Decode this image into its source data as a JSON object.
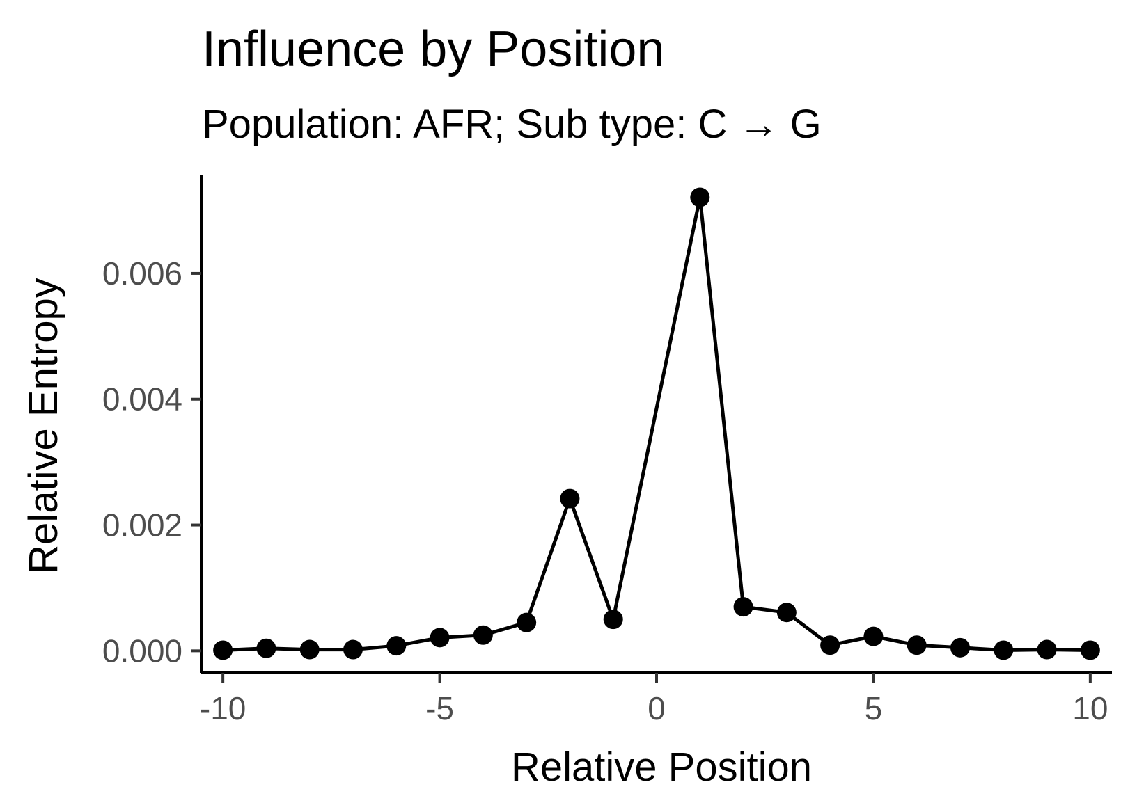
{
  "chart_data": {
    "type": "line",
    "title": "Influence by Position",
    "subtitle": "Population: AFR; Sub type: C → G",
    "xlabel": "Relative Position",
    "ylabel": "Relative Entropy",
    "x": [
      -10,
      -9,
      -8,
      -7,
      -6,
      -5,
      -4,
      -3,
      -2,
      -1,
      1,
      2,
      3,
      4,
      5,
      6,
      7,
      8,
      9,
      10
    ],
    "series": [
      {
        "values": [
          1e-05,
          4e-05,
          2e-05,
          2e-05,
          8e-05,
          0.00021,
          0.00025,
          0.00045,
          0.00242,
          0.0005,
          0.00721,
          0.0007,
          0.00061,
          9e-05,
          0.00023,
          9e-05,
          5e-05,
          1e-05,
          2e-05,
          1e-05
        ]
      }
    ],
    "xlim": [
      -10.5,
      10.5
    ],
    "ylim": [
      -0.00035,
      0.00757
    ],
    "x_ticks": [
      -10,
      -5,
      0,
      5,
      10
    ],
    "x_tick_labels": [
      "-10",
      "-5",
      "0",
      "5",
      "10"
    ],
    "y_ticks": [
      0,
      0.002,
      0.004,
      0.006
    ],
    "y_tick_labels": [
      "0.000",
      "0.002",
      "0.004",
      "0.006"
    ],
    "grid": false,
    "legend": "none",
    "line_color": "#000000",
    "point_color": "#000000"
  }
}
